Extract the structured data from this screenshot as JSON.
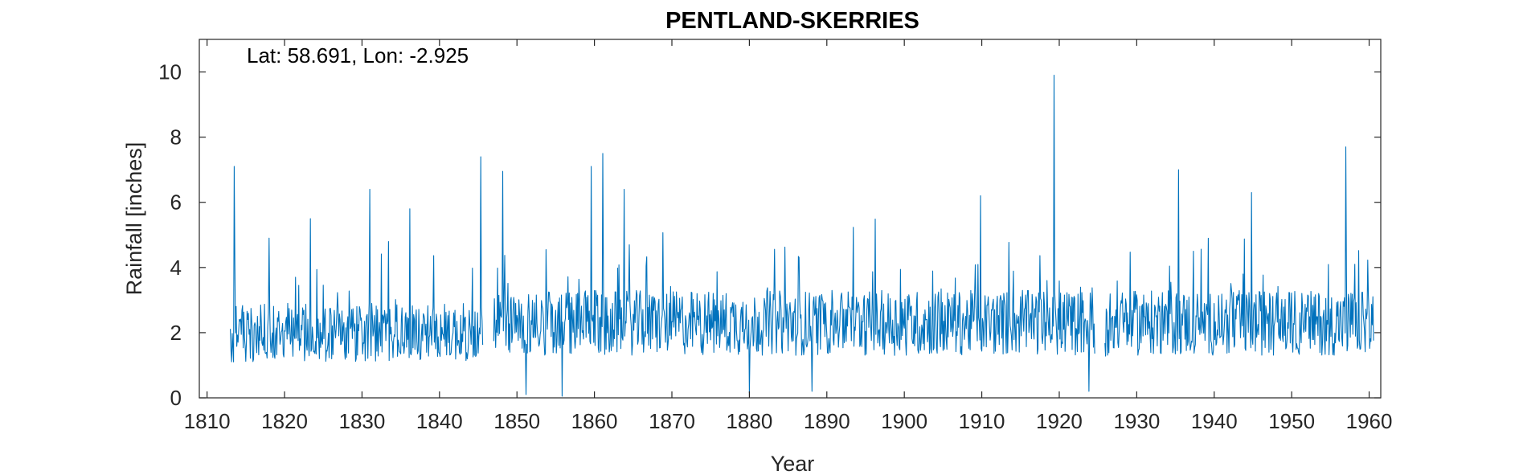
{
  "chart_data": {
    "type": "line",
    "title": "PENTLAND-SKERRIES",
    "annotation": "Lat: 58.691, Lon: -2.925",
    "xlabel": "Year",
    "ylabel": "Rainfall [inches]",
    "xlim": [
      1809,
      1961.5
    ],
    "ylim": [
      0,
      11
    ],
    "xticks": [
      1810,
      1820,
      1830,
      1840,
      1850,
      1860,
      1870,
      1880,
      1890,
      1900,
      1910,
      1920,
      1930,
      1940,
      1950,
      1960
    ],
    "yticks": [
      0,
      2,
      4,
      6,
      8,
      10
    ],
    "grid": false,
    "series": [
      {
        "color": "#0072BD",
        "segments": [
          [
            1813.0,
            1845.6
          ],
          [
            1847.0,
            1924.6
          ],
          [
            1925.9,
            1960.6
          ]
        ],
        "peaks": [
          {
            "x": 1813.5,
            "y": 7.1
          },
          {
            "x": 1818.0,
            "y": 4.9
          },
          {
            "x": 1823.3,
            "y": 5.5
          },
          {
            "x": 1831.0,
            "y": 6.4
          },
          {
            "x": 1836.2,
            "y": 5.8
          },
          {
            "x": 1845.3,
            "y": 7.4
          },
          {
            "x": 1848.2,
            "y": 6.95
          },
          {
            "x": 1859.6,
            "y": 7.1
          },
          {
            "x": 1861.1,
            "y": 7.5
          },
          {
            "x": 1863.8,
            "y": 6.4
          },
          {
            "x": 1909.8,
            "y": 6.2
          },
          {
            "x": 1919.3,
            "y": 9.9
          },
          {
            "x": 1935.4,
            "y": 7.0
          },
          {
            "x": 1944.8,
            "y": 6.3
          },
          {
            "x": 1957.0,
            "y": 7.7
          }
        ],
        "lows": [
          {
            "x": 1851.2,
            "y": 0.1
          },
          {
            "x": 1855.8,
            "y": 0.05
          },
          {
            "x": 1880.0,
            "y": 0.15
          },
          {
            "x": 1888.1,
            "y": 0.2
          },
          {
            "x": 1923.8,
            "y": 0.2
          }
        ],
        "mean_by_era": [
          {
            "range": [
              1813,
              1845.6
            ],
            "mean": 2.0,
            "spread": 0.9
          },
          {
            "range": [
              1847,
              1925
            ],
            "mean": 2.3,
            "spread": 1.0
          },
          {
            "range": [
              1926,
              1960.6
            ],
            "mean": 2.3,
            "spread": 1.0
          }
        ]
      }
    ]
  }
}
